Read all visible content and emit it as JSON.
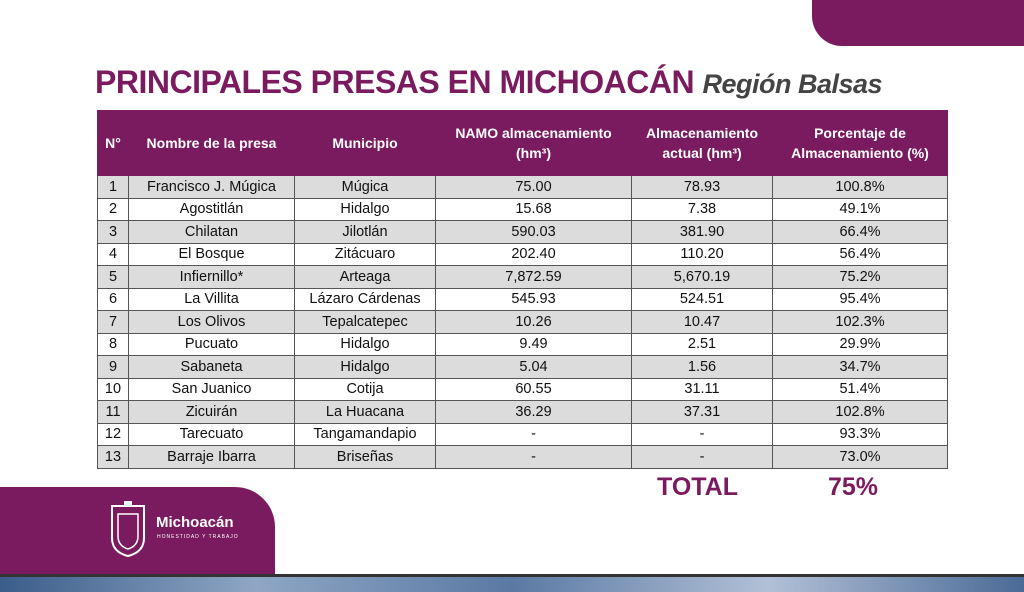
{
  "header": {
    "title": "PRINCIPALES PRESAS EN MICHOACÁN",
    "subtitle": "Región Balsas"
  },
  "table": {
    "columns": [
      "N°",
      "Nombre de la presa",
      "Municipio",
      "NAMO almacenamiento (hm³)",
      "Almacenamiento actual (hm³)",
      "Porcentaje de Almacenamiento (%)"
    ],
    "rows": [
      [
        "1",
        "Francisco J. Múgica",
        "Múgica",
        "75.00",
        "78.93",
        "100.8%"
      ],
      [
        "2",
        "Agostitlán",
        "Hidalgo",
        "15.68",
        "7.38",
        "49.1%"
      ],
      [
        "3",
        "Chilatan",
        "Jilotlán",
        "590.03",
        "381.90",
        "66.4%"
      ],
      [
        "4",
        "El Bosque",
        "Zitácuaro",
        "202.40",
        "110.20",
        "56.4%"
      ],
      [
        "5",
        "Infiernillo*",
        "Arteaga",
        "7,872.59",
        "5,670.19",
        "75.2%"
      ],
      [
        "6",
        "La Villita",
        "Lázaro Cárdenas",
        "545.93",
        "524.51",
        "95.4%"
      ],
      [
        "7",
        "Los Olivos",
        "Tepalcatepec",
        "10.26",
        "10.47",
        "102.3%"
      ],
      [
        "8",
        "Pucuato",
        "Hidalgo",
        "9.49",
        "2.51",
        "29.9%"
      ],
      [
        "9",
        "Sabaneta",
        "Hidalgo",
        "5.04",
        "1.56",
        "34.7%"
      ],
      [
        "10",
        "San Juanico",
        "Cotija",
        "60.55",
        "31.11",
        "51.4%"
      ],
      [
        "11",
        "Zicuirán",
        "La Huacana",
        "36.29",
        "37.31",
        "102.8%"
      ],
      [
        "12",
        "Tarecuato",
        "Tangamandapio",
        "-",
        "-",
        "93.3%"
      ],
      [
        "13",
        "Barraje Ibarra",
        "Briseñas",
        "-",
        "-",
        "73.0%"
      ]
    ],
    "total_label": "TOTAL",
    "total_value": "75%"
  },
  "logo": {
    "name": "Michoacán",
    "motto": "HONESTIDAD Y TRABAJO"
  }
}
